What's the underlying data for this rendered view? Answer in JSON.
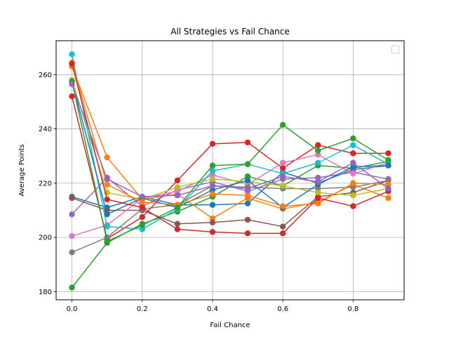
{
  "chart_data": {
    "type": "line",
    "title": "All Strategies vs Fail Chance",
    "xlabel": "Fail Chance",
    "ylabel": "Average Points",
    "xlim": [
      -0.045,
      0.945
    ],
    "ylim": [
      177.0,
      272.5
    ],
    "xticks": [
      0.0,
      0.2,
      0.4,
      0.6,
      0.8
    ],
    "xtick_labels": [
      "0.0",
      "0.2",
      "0.4",
      "0.6",
      "0.8"
    ],
    "yticks": [
      180,
      200,
      220,
      240,
      260
    ],
    "ytick_labels": [
      "180",
      "200",
      "220",
      "240",
      "260"
    ],
    "grid": true,
    "legend": "upper-right (empty)",
    "x": [
      0.0,
      0.1,
      0.2,
      0.3,
      0.4,
      0.5,
      0.6,
      0.7,
      0.8,
      0.9
    ],
    "series": [
      {
        "color": "#1f77b4",
        "values": [
          215.0,
          211.0,
          215.0,
          212.0,
          212.0,
          212.5,
          224.0,
          220.0,
          225.0,
          226.5
        ]
      },
      {
        "color": "#ff7f0e",
        "values": [
          263.0,
          229.5,
          214.0,
          216.0,
          207.0,
          214.5,
          210.5,
          213.0,
          219.5,
          214.5
        ]
      },
      {
        "color": "#2ca02c",
        "values": [
          181.5,
          198.0,
          205.0,
          209.5,
          215.0,
          222.5,
          219.0,
          226.5,
          225.5,
          228.0
        ]
      },
      {
        "color": "#d62728",
        "values": [
          252.0,
          199.5,
          207.5,
          221.0,
          234.5,
          235.0,
          225.5,
          234.0,
          231.0,
          231.0
        ]
      },
      {
        "color": "#9467bd",
        "values": [
          208.5,
          222.0,
          211.5,
          217.5,
          220.5,
          217.0,
          221.5,
          222.0,
          224.0,
          221.5
        ]
      },
      {
        "color": "#8c564b",
        "values": [
          214.5,
          210.0,
          210.0,
          205.0,
          205.5,
          206.5,
          204.0,
          215.0,
          216.5,
          221.0
        ]
      },
      {
        "color": "#e377c2",
        "values": [
          200.5,
          204.5,
          214.5,
          217.0,
          223.0,
          219.5,
          227.5,
          230.5,
          223.5,
          227.5
        ]
      },
      {
        "color": "#7f7f7f",
        "values": [
          194.5,
          200.0,
          210.5,
          212.0,
          219.0,
          218.5,
          218.0,
          218.0,
          218.5,
          221.0
        ]
      },
      {
        "color": "#bcbd22",
        "values": [
          258.0,
          216.5,
          214.0,
          218.5,
          221.5,
          220.5,
          219.0,
          216.5,
          215.5,
          218.0
        ]
      },
      {
        "color": "#17becf",
        "values": [
          267.5,
          204.0,
          203.0,
          210.5,
          224.5,
          227.0,
          223.5,
          227.5,
          234.0,
          227.0
        ]
      },
      {
        "color": "#1f77b4",
        "values": [
          257.5,
          208.5,
          214.5,
          211.0,
          217.5,
          221.0,
          211.0,
          219.5,
          226.0,
          226.5
        ]
      },
      {
        "color": "#ff7f0e",
        "values": [
          264.5,
          219.5,
          213.0,
          212.0,
          216.0,
          215.5,
          211.5,
          212.5,
          220.0,
          219.5
        ]
      },
      {
        "color": "#2ca02c",
        "values": [
          257.5,
          198.5,
          204.5,
          211.0,
          226.5,
          227.0,
          241.5,
          232.0,
          236.5,
          228.5
        ]
      },
      {
        "color": "#d62728",
        "values": [
          264.0,
          214.0,
          211.0,
          203.0,
          202.0,
          201.5,
          201.5,
          214.5,
          211.5,
          217.0
        ]
      },
      {
        "color": "#9467bd",
        "values": [
          256.5,
          221.5,
          215.0,
          215.5,
          219.0,
          218.0,
          222.5,
          220.5,
          227.5,
          218.0
        ]
      }
    ]
  }
}
